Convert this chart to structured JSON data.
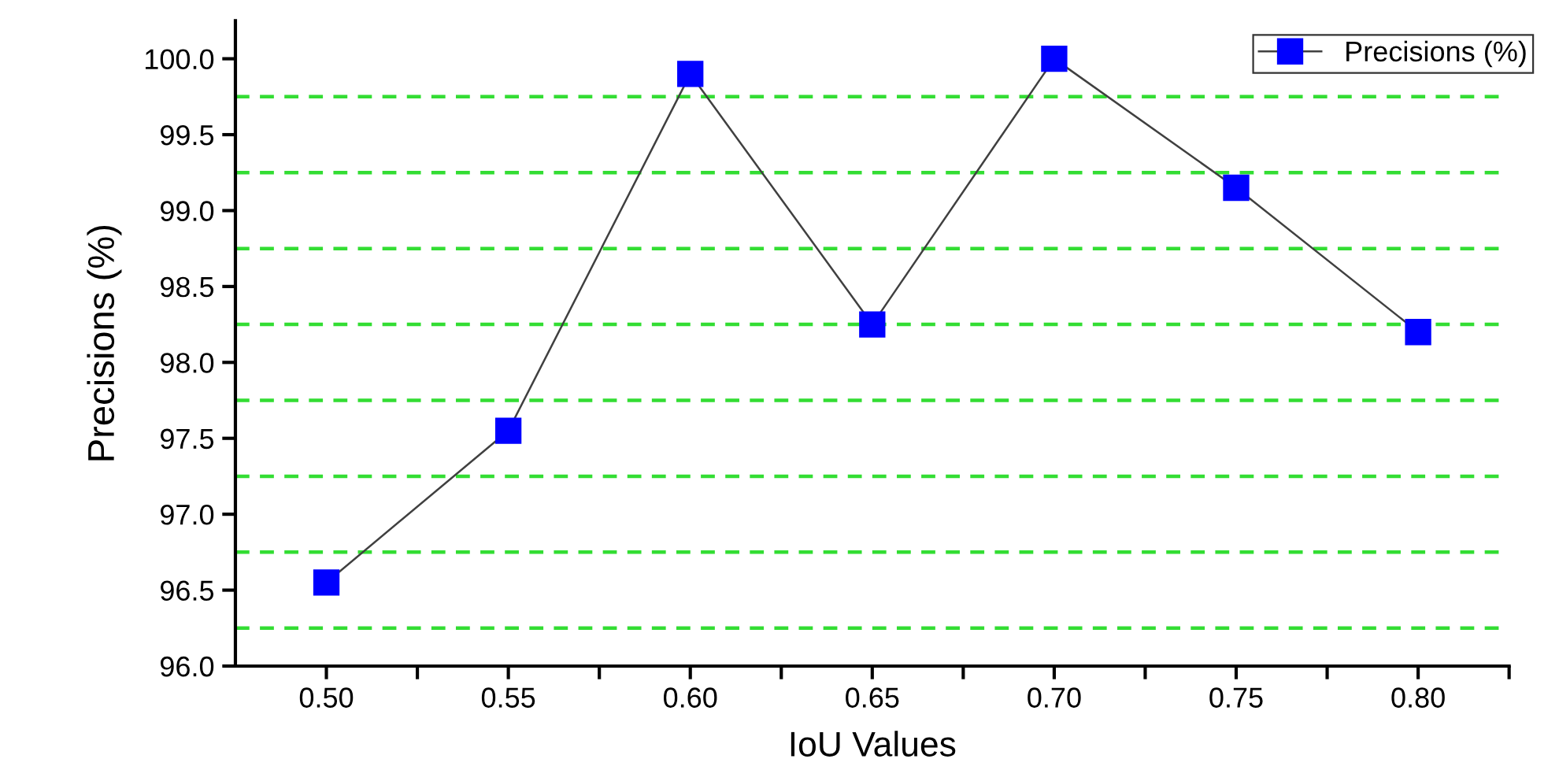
{
  "chart_data": {
    "type": "line",
    "xlabel": "IoU Values",
    "ylabel": "Precisions (%)",
    "x": [
      0.5,
      0.55,
      0.6,
      0.65,
      0.7,
      0.75,
      0.8
    ],
    "series": [
      {
        "name": "Precisions (%)",
        "color": "#0000ff",
        "values": [
          96.55,
          97.55,
          99.9,
          98.25,
          100.0,
          99.15,
          98.2
        ]
      }
    ],
    "xlim": [
      0.475,
      0.825
    ],
    "ylim": [
      96.0,
      100.25
    ],
    "xticks": [
      {
        "value": 0.5,
        "label": "0.50"
      },
      {
        "value": 0.525,
        "label": null
      },
      {
        "value": 0.55,
        "label": "0.55"
      },
      {
        "value": 0.575,
        "label": null
      },
      {
        "value": 0.6,
        "label": "0.60"
      },
      {
        "value": 0.625,
        "label": null
      },
      {
        "value": 0.65,
        "label": "0.65"
      },
      {
        "value": 0.675,
        "label": null
      },
      {
        "value": 0.7,
        "label": "0.70"
      },
      {
        "value": 0.725,
        "label": null
      },
      {
        "value": 0.75,
        "label": "0.75"
      },
      {
        "value": 0.775,
        "label": null
      },
      {
        "value": 0.8,
        "label": "0.80"
      },
      {
        "value": 0.825,
        "label": null
      }
    ],
    "yticks": [
      {
        "value": 96.0,
        "label": "96.0"
      },
      {
        "value": 96.5,
        "label": "96.5"
      },
      {
        "value": 97.0,
        "label": "97.0"
      },
      {
        "value": 97.5,
        "label": "97.5"
      },
      {
        "value": 98.0,
        "label": "98.0"
      },
      {
        "value": 98.5,
        "label": "98.5"
      },
      {
        "value": 99.0,
        "label": "99.0"
      },
      {
        "value": 99.5,
        "label": "99.5"
      },
      {
        "value": 100.0,
        "label": "100.0"
      }
    ],
    "ref_lines": [
      {
        "axis": "y",
        "value": 96.25,
        "color": "#33dd33",
        "line_style": "dashed"
      },
      {
        "axis": "y",
        "value": 96.75,
        "color": "#33dd33",
        "line_style": "dashed"
      },
      {
        "axis": "y",
        "value": 97.25,
        "color": "#33dd33",
        "line_style": "dashed"
      },
      {
        "axis": "y",
        "value": 97.75,
        "color": "#33dd33",
        "line_style": "dashed"
      },
      {
        "axis": "y",
        "value": 98.25,
        "color": "#33dd33",
        "line_style": "dashed"
      },
      {
        "axis": "y",
        "value": 98.75,
        "color": "#33dd33",
        "line_style": "dashed"
      },
      {
        "axis": "y",
        "value": 99.25,
        "color": "#33dd33",
        "line_style": "dashed"
      },
      {
        "axis": "y",
        "value": 99.75,
        "color": "#33dd33",
        "line_style": "dashed"
      }
    ],
    "marker": "square",
    "line_style": "solid",
    "grid": false,
    "legend": "top right"
  }
}
